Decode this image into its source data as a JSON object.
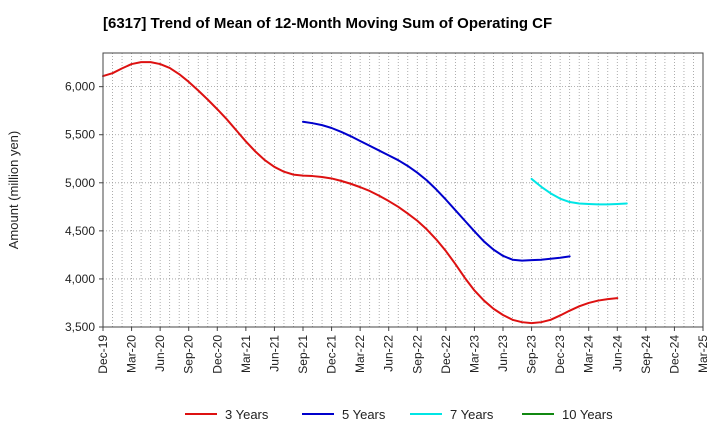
{
  "chart_data": {
    "type": "line",
    "title": "[6317]  Trend of Mean of 12-Month Moving Sum of Operating CF",
    "xlabel": "",
    "ylabel": "Amount (million yen)",
    "ylim": [
      3500,
      6350
    ],
    "yticks": [
      3500,
      4000,
      4500,
      5000,
      5500,
      6000
    ],
    "ytick_labels": [
      "3,500",
      "4,000",
      "4,500",
      "5,000",
      "5,500",
      "6,000"
    ],
    "x_start": "Dec-19",
    "x_end": "Mar-25",
    "x_count": 64,
    "xtick_labels": [
      "Dec-19",
      "Mar-20",
      "Jun-20",
      "Sep-20",
      "Dec-20",
      "Mar-21",
      "Jun-21",
      "Sep-21",
      "Dec-21",
      "Mar-22",
      "Jun-22",
      "Sep-22",
      "Dec-22",
      "Mar-23",
      "Jun-23",
      "Sep-23",
      "Dec-23",
      "Mar-24",
      "Jun-24",
      "Sep-24",
      "Dec-24",
      "Mar-25"
    ],
    "grid": true,
    "series": [
      {
        "name": "3 Years",
        "color": "#dd1111",
        "start": "Dec-19",
        "values": [
          6110,
          6140,
          6190,
          6235,
          6255,
          6255,
          6235,
          6195,
          6130,
          6050,
          5960,
          5865,
          5765,
          5660,
          5545,
          5430,
          5325,
          5235,
          5165,
          5115,
          5085,
          5075,
          5070,
          5060,
          5045,
          5020,
          4990,
          4955,
          4915,
          4865,
          4810,
          4750,
          4680,
          4605,
          4515,
          4410,
          4290,
          4155,
          4010,
          3880,
          3775,
          3690,
          3625,
          3575,
          3550,
          3540,
          3550,
          3575,
          3620,
          3670,
          3715,
          3750,
          3775,
          3790,
          3800
        ]
      },
      {
        "name": "5 Years",
        "color": "#0000cc",
        "start": "Sep-21",
        "values": [
          5635,
          5620,
          5600,
          5570,
          5530,
          5485,
          5435,
          5385,
          5335,
          5285,
          5235,
          5175,
          5105,
          5025,
          4930,
          4825,
          4715,
          4605,
          4495,
          4390,
          4305,
          4240,
          4200,
          4190,
          4195,
          4200,
          4210,
          4220,
          4235
        ]
      },
      {
        "name": "7 Years",
        "color": "#00e5e5",
        "start": "Sep-23",
        "values": [
          5040,
          4960,
          4890,
          4835,
          4800,
          4785,
          4780,
          4775,
          4775,
          4780,
          4785
        ]
      },
      {
        "name": "10 Years",
        "color": "#118811",
        "start": "Dec-19",
        "values": []
      }
    ]
  }
}
